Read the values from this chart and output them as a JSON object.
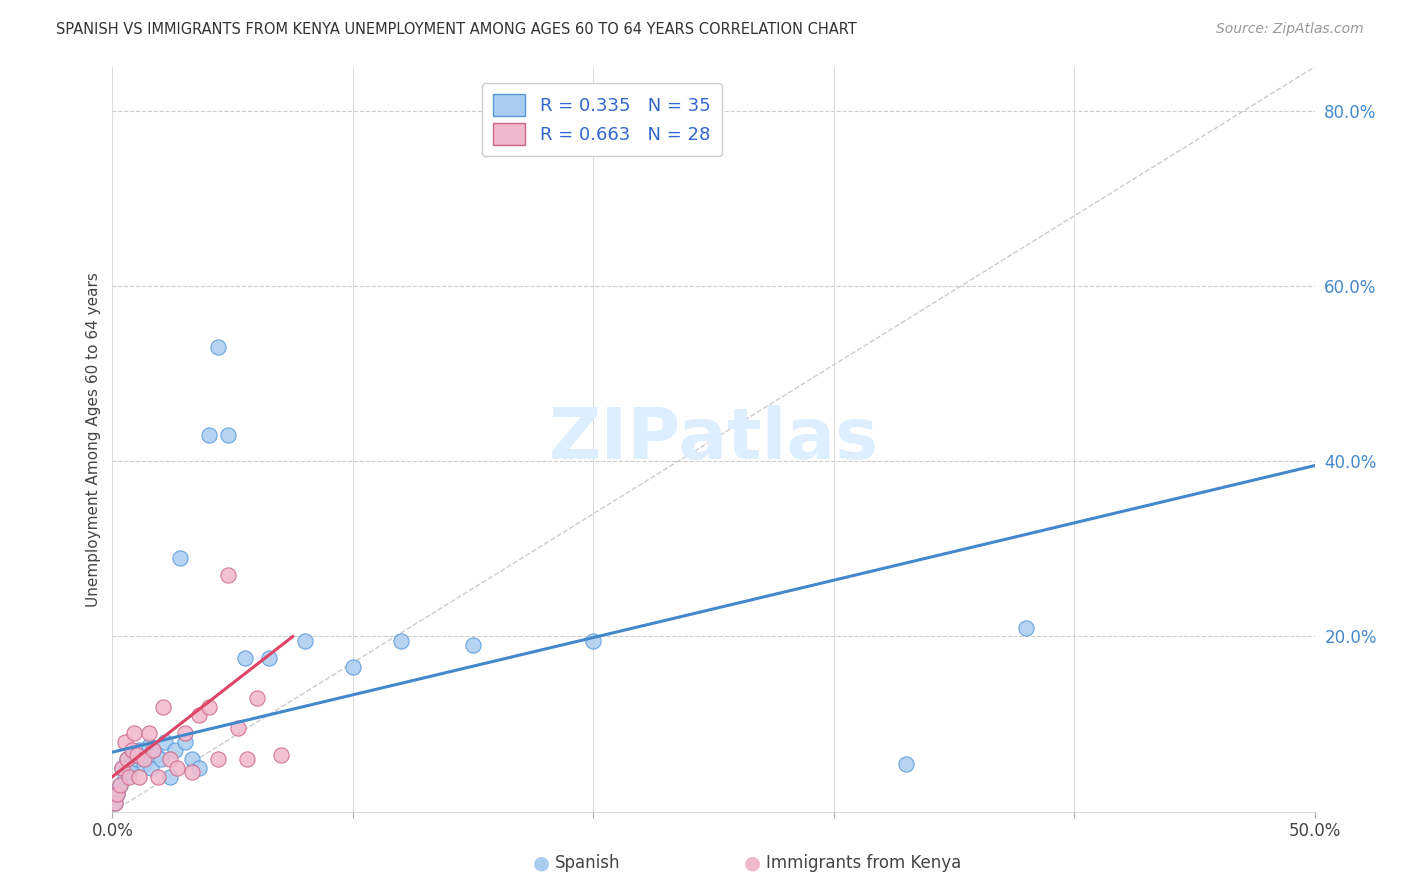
{
  "title": "SPANISH VS IMMIGRANTS FROM KENYA UNEMPLOYMENT AMONG AGES 60 TO 64 YEARS CORRELATION CHART",
  "source": "Source: ZipAtlas.com",
  "ylabel": "Unemployment Among Ages 60 to 64 years",
  "xmin": 0.0,
  "xmax": 0.5,
  "ymin": 0.0,
  "ymax": 0.85,
  "R_spanish": 0.335,
  "N_spanish": 35,
  "R_kenya": 0.663,
  "N_kenya": 28,
  "color_spanish_fill": "#aaccf0",
  "color_spanish_edge": "#5599dd",
  "color_kenya_fill": "#f0b8cc",
  "color_kenya_edge": "#cc6688",
  "color_spanish_line": "#4488cc",
  "color_kenya_line": "#dd4466",
  "color_diagonal": "#cccccc",
  "color_grid": "#cccccc",
  "color_right_tick": "#4488cc",
  "watermark_color": "#ddeeff",
  "spanish_x": [
    0.001,
    0.002,
    0.003,
    0.004,
    0.005,
    0.006,
    0.007,
    0.008,
    0.009,
    0.01,
    0.011,
    0.013,
    0.015,
    0.016,
    0.018,
    0.02,
    0.022,
    0.024,
    0.026,
    0.028,
    0.03,
    0.033,
    0.036,
    0.04,
    0.044,
    0.048,
    0.055,
    0.065,
    0.08,
    0.1,
    0.12,
    0.15,
    0.2,
    0.33,
    0.38
  ],
  "spanish_y": [
    0.01,
    0.02,
    0.03,
    0.05,
    0.04,
    0.06,
    0.045,
    0.055,
    0.065,
    0.06,
    0.07,
    0.055,
    0.075,
    0.05,
    0.065,
    0.06,
    0.08,
    0.04,
    0.07,
    0.29,
    0.08,
    0.06,
    0.05,
    0.43,
    0.53,
    0.43,
    0.175,
    0.175,
    0.195,
    0.165,
    0.195,
    0.19,
    0.195,
    0.055,
    0.21
  ],
  "kenya_x": [
    0.001,
    0.002,
    0.003,
    0.004,
    0.005,
    0.006,
    0.007,
    0.008,
    0.009,
    0.01,
    0.011,
    0.013,
    0.015,
    0.017,
    0.019,
    0.021,
    0.024,
    0.027,
    0.03,
    0.033,
    0.036,
    0.04,
    0.044,
    0.048,
    0.052,
    0.056,
    0.06,
    0.07
  ],
  "kenya_y": [
    0.01,
    0.02,
    0.03,
    0.05,
    0.08,
    0.06,
    0.04,
    0.07,
    0.09,
    0.065,
    0.04,
    0.06,
    0.09,
    0.07,
    0.04,
    0.12,
    0.06,
    0.05,
    0.09,
    0.045,
    0.11,
    0.12,
    0.06,
    0.27,
    0.095,
    0.06,
    0.13,
    0.065
  ],
  "spanish_line_x0": 0.0,
  "spanish_line_x1": 0.5,
  "spanish_line_y0": 0.068,
  "spanish_line_y1": 0.395,
  "kenya_line_x0": 0.0,
  "kenya_line_x1": 0.075,
  "kenya_line_y0": 0.04,
  "kenya_line_y1": 0.2
}
